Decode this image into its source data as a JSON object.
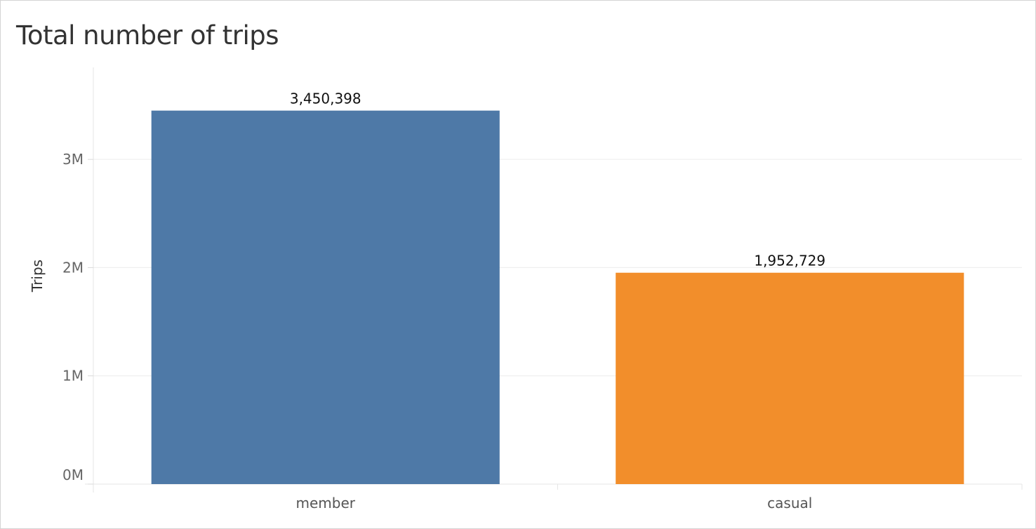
{
  "chart_data": {
    "type": "bar",
    "title": "Total number of trips",
    "xlabel": "",
    "ylabel": "Trips",
    "categories": [
      "member",
      "casual"
    ],
    "values": [
      3450398,
      1952729
    ],
    "data_labels": [
      "3,450,398",
      "1,952,729"
    ],
    "colors": [
      "#4e79a7",
      "#f28e2b"
    ],
    "yticks": [
      0,
      1000000,
      2000000,
      3000000
    ],
    "ytick_labels": [
      "0M",
      "1M",
      "2M",
      "3M"
    ],
    "ylim": [
      0,
      3850000
    ],
    "grid": true,
    "legend": "none"
  }
}
